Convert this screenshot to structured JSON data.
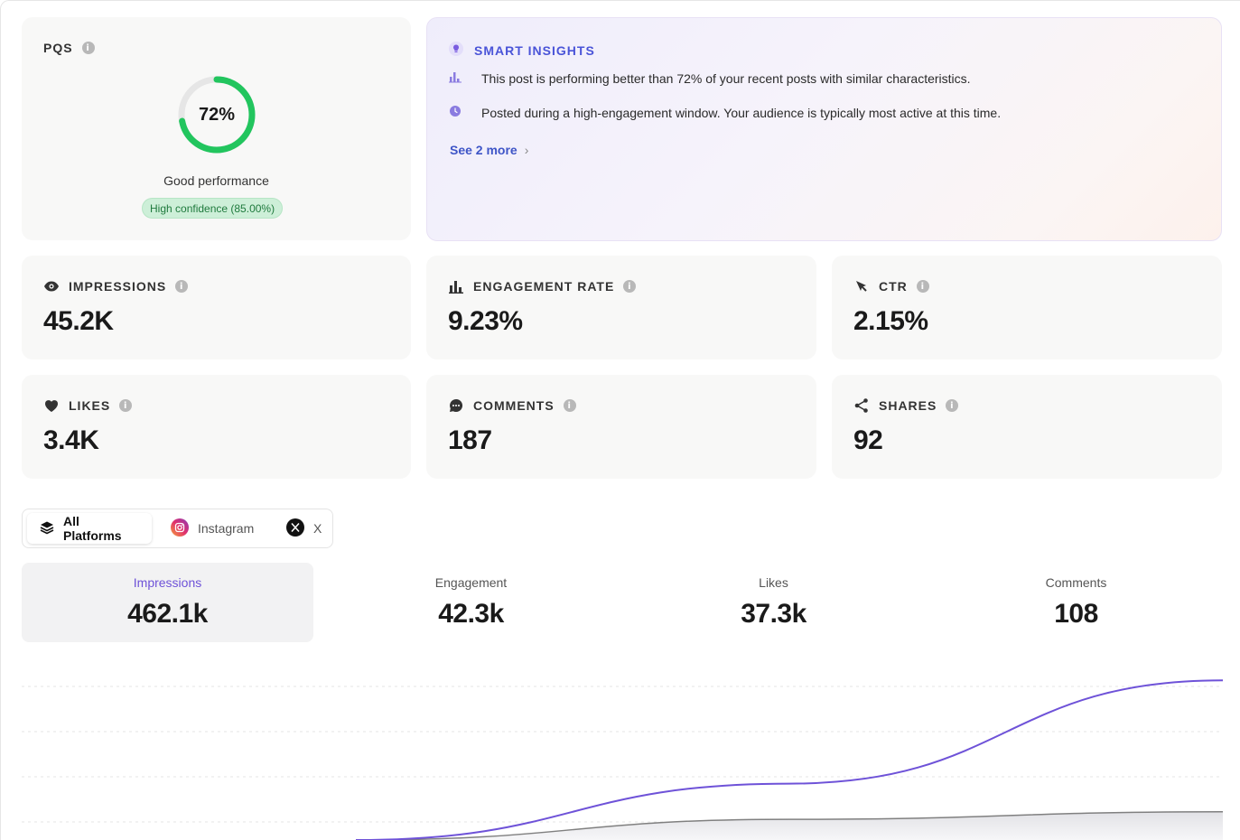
{
  "pqs": {
    "title": "PQS",
    "score": 72,
    "score_label": "72%",
    "performance_label": "Good performance",
    "confidence_label": "High confidence (85.00%)",
    "ring_color": "#22c55e"
  },
  "insights": {
    "title": "SMART INSIGHTS",
    "items": [
      {
        "icon": "bar-chart-icon",
        "text": "This post is performing better than 72% of your recent posts with similar characteristics."
      },
      {
        "icon": "clock-icon",
        "text": "Posted during a high-engagement window. Your audience is typically most active at this time."
      }
    ],
    "see_more_label": "See 2 more"
  },
  "metrics": [
    {
      "icon": "eye-icon",
      "label": "IMPRESSIONS",
      "value": "45.2K"
    },
    {
      "icon": "bar-chart-icon",
      "label": "ENGAGEMENT RATE",
      "value": "9.23%"
    },
    {
      "icon": "cursor-icon",
      "label": "CTR",
      "value": "2.15%"
    },
    {
      "icon": "heart-icon",
      "label": "LIKES",
      "value": "3.4K"
    },
    {
      "icon": "comment-icon",
      "label": "COMMENTS",
      "value": "187"
    },
    {
      "icon": "share-icon",
      "label": "SHARES",
      "value": "92"
    }
  ],
  "platform_tabs": [
    {
      "icon": "layers-icon",
      "label": "All Platforms",
      "active": true
    },
    {
      "icon": "instagram-icon",
      "label": "Instagram",
      "active": false
    },
    {
      "icon": "x-logo-icon",
      "label": "X",
      "active": false
    }
  ],
  "summary": [
    {
      "label": "Impressions",
      "value": "462.1k",
      "active": true
    },
    {
      "label": "Engagement",
      "value": "42.3k",
      "active": false
    },
    {
      "label": "Likes",
      "value": "37.3k",
      "active": false
    },
    {
      "label": "Comments",
      "value": "108",
      "active": false
    }
  ],
  "colors": {
    "accent_purple": "#6e52d8",
    "insight_blue": "#4a54d8",
    "link_blue": "#3e55c7",
    "success_green": "#22c55e"
  },
  "chart_data": {
    "type": "area",
    "grid": true,
    "series": [
      {
        "values": [
          0,
          0.3,
          0.85
        ]
      },
      {
        "values": [
          0,
          0.11,
          0.15
        ]
      }
    ]
  }
}
